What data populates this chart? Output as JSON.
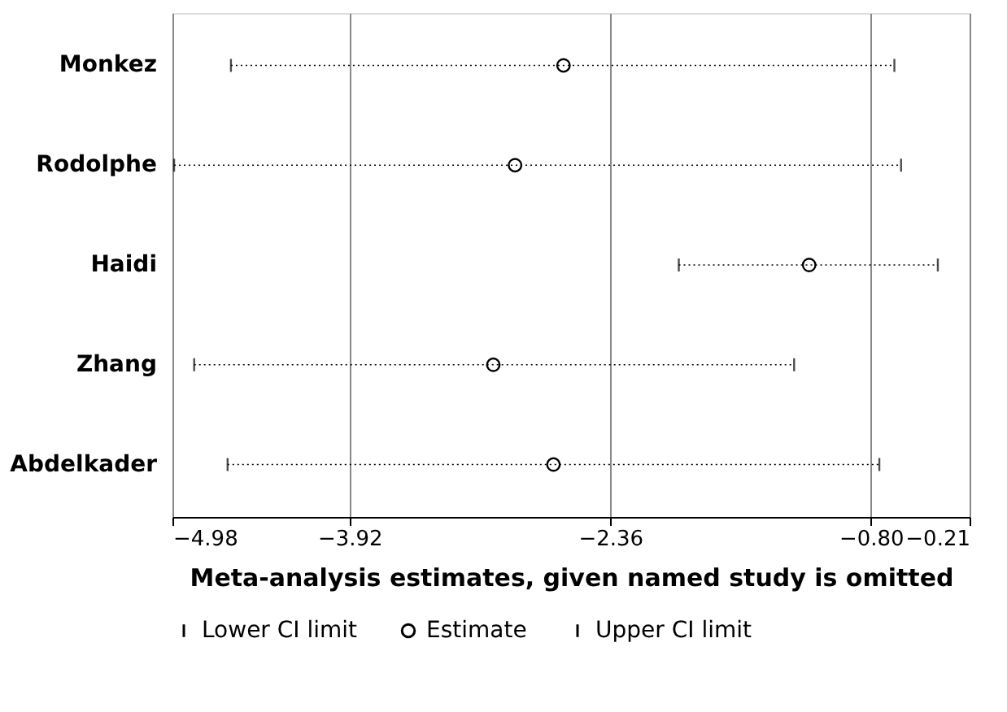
{
  "chart_data": {
    "type": "scatter",
    "orientation": "horizontal",
    "xlabel": "Meta-analysis estimates, given named study is omitted",
    "categories": [
      "Monkez",
      "Rodolphe",
      "Haidi",
      "Zhang",
      "Abdelkader"
    ],
    "series": [
      {
        "name": "Estimate",
        "color": "#000000",
        "marker": "circle",
        "values": [
          -2.64,
          -2.93,
          -1.17,
          -3.06,
          -2.7
        ],
        "errors": [
          [
            -4.63,
            -0.66
          ],
          [
            -4.97,
            -0.62
          ],
          [
            -1.95,
            -0.4
          ],
          [
            -4.85,
            -1.26
          ],
          [
            -4.65,
            -0.75
          ]
        ]
      }
    ],
    "annotations": [
      "Lower CI limit",
      "Upper CI limit"
    ],
    "line_style": "dotted",
    "xlim": [
      -4.98,
      -0.21
    ],
    "xticks": [
      {
        "value": -4.98,
        "label": "−4.98"
      },
      {
        "value": -3.92,
        "label": "−3.92"
      },
      {
        "value": -2.36,
        "label": "−2.36"
      },
      {
        "value": -0.8,
        "label": "−0.80"
      },
      {
        "value": -0.21,
        "label": "−0.21"
      }
    ],
    "grid": "x",
    "legend": "bottom"
  }
}
